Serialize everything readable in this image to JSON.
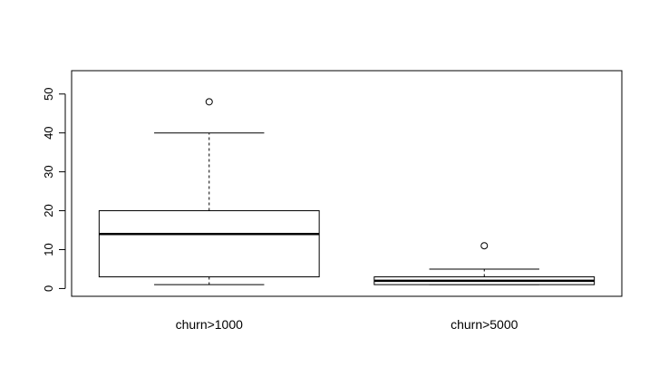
{
  "chart_data": {
    "type": "boxplot",
    "title": "",
    "xlabel": "",
    "ylabel": "",
    "ylim": [
      -2,
      56
    ],
    "yticks": [
      0,
      10,
      20,
      30,
      40,
      50
    ],
    "ytick_labels": [
      "0",
      "10",
      "20",
      "30",
      "40",
      "50"
    ],
    "grid": false,
    "categories": [
      "churn>1000",
      "churn>5000"
    ],
    "boxes": [
      {
        "name": "churn>1000",
        "whisker_low": 1,
        "q1": 3,
        "median": 14,
        "q3": 20,
        "whisker_high": 40,
        "outliers": [
          48
        ]
      },
      {
        "name": "churn>5000",
        "whisker_low": 1,
        "q1": 1,
        "median": 2,
        "q3": 3,
        "whisker_high": 5,
        "outliers": [
          11
        ]
      }
    ]
  }
}
